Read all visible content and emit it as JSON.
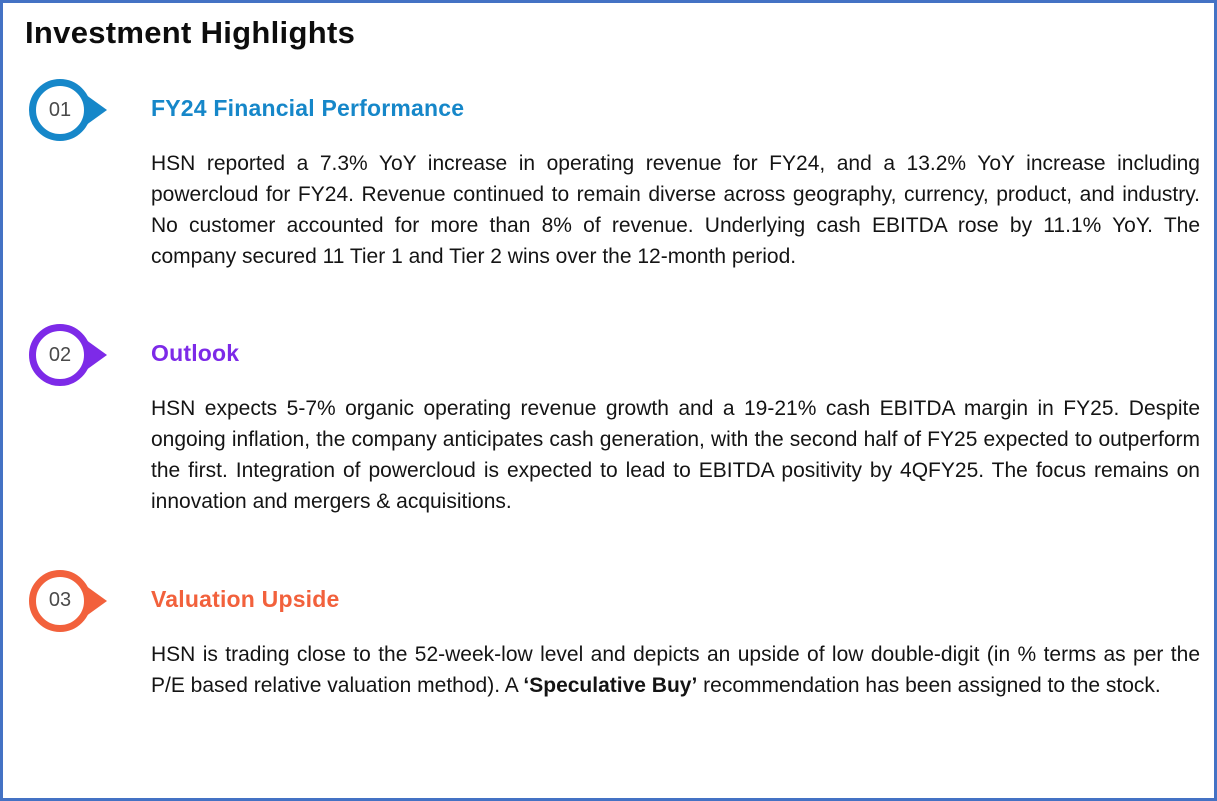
{
  "page": {
    "title": "Investment Highlights",
    "border_color": "#4472c4"
  },
  "sections": [
    {
      "number": "01",
      "heading": "FY24 Financial Performance",
      "accent_color": "#1687c9",
      "body": "HSN reported a 7.3% YoY increase in operating revenue for FY24, and a 13.2% YoY increase including powercloud for FY24. Revenue continued to remain diverse across geography, currency, product, and industry. No customer accounted for more than 8% of revenue. Underlying cash EBITDA rose by 11.1% YoY. The company secured 11 Tier 1 and Tier 2 wins over the 12-month period."
    },
    {
      "number": "02",
      "heading": "Outlook",
      "accent_color": "#7d2ae8",
      "body": "HSN expects 5-7% organic operating revenue growth and a 19-21% cash EBITDA margin in FY25. Despite ongoing inflation, the company anticipates cash generation, with the second half of FY25 expected to outperform the first. Integration of powercloud is expected to lead to EBITDA positivity by 4QFY25. The focus remains on innovation and mergers & acquisitions."
    },
    {
      "number": "03",
      "heading": "Valuation Upside",
      "accent_color": "#f2613c",
      "body_before_bold": "HSN is trading close to the 52-week-low level and depicts an upside of low double-digit (in % terms as per the P/E based relative valuation method). A ",
      "body_bold": "‘Speculative Buy’",
      "body_after_bold": " recommendation has been assigned to the stock."
    }
  ]
}
